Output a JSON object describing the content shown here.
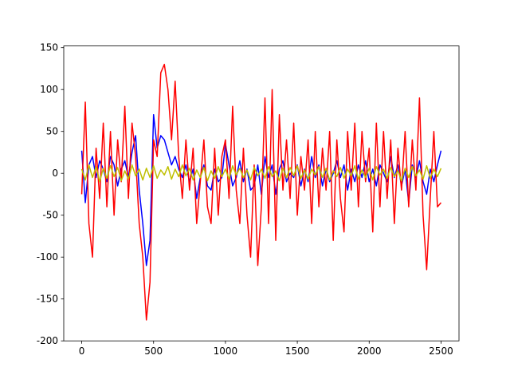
{
  "chart_data": {
    "type": "line",
    "x": [
      0,
      25,
      50,
      75,
      100,
      125,
      150,
      175,
      200,
      225,
      250,
      275,
      300,
      325,
      350,
      375,
      400,
      425,
      450,
      475,
      500,
      525,
      550,
      575,
      600,
      625,
      650,
      675,
      700,
      725,
      750,
      775,
      800,
      825,
      850,
      875,
      900,
      925,
      950,
      975,
      1000,
      1025,
      1050,
      1075,
      1100,
      1125,
      1150,
      1175,
      1200,
      1225,
      1250,
      1275,
      1300,
      1325,
      1350,
      1375,
      1400,
      1425,
      1450,
      1475,
      1500,
      1525,
      1550,
      1575,
      1600,
      1625,
      1650,
      1675,
      1700,
      1725,
      1750,
      1775,
      1800,
      1825,
      1850,
      1875,
      1900,
      1925,
      1950,
      1975,
      2000,
      2025,
      2050,
      2075,
      2100,
      2125,
      2150,
      2175,
      2200,
      2225,
      2250,
      2275,
      2300,
      2325,
      2350,
      2375,
      2400,
      2425,
      2450,
      2475,
      2500
    ],
    "series": [
      {
        "color": "#0000ff",
        "values": [
          27,
          -35,
          10,
          20,
          -5,
          15,
          5,
          -10,
          20,
          10,
          -15,
          5,
          15,
          -5,
          25,
          45,
          -20,
          -60,
          -110,
          -80,
          70,
          30,
          45,
          40,
          25,
          10,
          20,
          5,
          -5,
          10,
          -10,
          5,
          -30,
          -5,
          10,
          -15,
          -20,
          5,
          -10,
          -5,
          35,
          10,
          -15,
          -5,
          15,
          -10,
          5,
          -20,
          -15,
          10,
          -25,
          20,
          -5,
          10,
          -25,
          5,
          15,
          -10,
          0,
          -5,
          10,
          -15,
          5,
          -10,
          20,
          -5,
          10,
          -15,
          5,
          -10,
          0,
          15,
          -5,
          10,
          -20,
          5,
          -10,
          10,
          -5,
          15,
          -10,
          5,
          -15,
          10,
          0,
          -10,
          20,
          -5,
          10,
          -15,
          5,
          -35,
          10,
          -5,
          15,
          -10,
          -25,
          5,
          -10,
          10,
          27
        ]
      },
      {
        "color": "#ff0000",
        "values": [
          -25,
          85,
          -60,
          -100,
          30,
          -30,
          60,
          -40,
          50,
          -50,
          40,
          -10,
          80,
          -30,
          60,
          20,
          -60,
          -100,
          -175,
          -130,
          40,
          20,
          120,
          130,
          100,
          40,
          110,
          20,
          -30,
          40,
          -20,
          30,
          -60,
          -10,
          40,
          -40,
          -60,
          30,
          -50,
          20,
          40,
          -30,
          80,
          -20,
          -60,
          30,
          -50,
          -100,
          10,
          -110,
          -40,
          90,
          -60,
          100,
          -80,
          70,
          -20,
          40,
          -30,
          60,
          -50,
          20,
          -20,
          40,
          -60,
          50,
          -40,
          30,
          -20,
          50,
          -80,
          40,
          -30,
          -70,
          50,
          -20,
          60,
          -40,
          50,
          -10,
          30,
          -70,
          60,
          -40,
          50,
          -30,
          40,
          -60,
          30,
          -20,
          50,
          -40,
          40,
          -20,
          90,
          -50,
          -115,
          -30,
          50,
          -40,
          -35
        ]
      },
      {
        "color": "#bfbf00",
        "values": [
          5,
          -8,
          10,
          -5,
          8,
          -10,
          6,
          -6,
          9,
          -4,
          7,
          -9,
          3,
          -7,
          10,
          -3,
          5,
          -8,
          6,
          -5,
          9,
          -6,
          4,
          -2,
          8,
          -7,
          5,
          -4,
          10,
          -3,
          6,
          -8,
          4,
          -5,
          7,
          -9,
          3,
          -6,
          8,
          -4,
          5,
          -7,
          9,
          -2,
          6,
          -5,
          4,
          -8,
          7,
          -3,
          5,
          -6,
          8,
          -4,
          3,
          -9,
          6,
          -5,
          7,
          -3,
          9,
          -6,
          4,
          -7,
          5,
          -2,
          8,
          -5,
          6,
          -8,
          3,
          -4,
          7,
          -6,
          5,
          -3,
          9,
          -7,
          4,
          -5,
          6,
          -8,
          8,
          -2,
          5,
          -6,
          7,
          -4,
          3,
          -9,
          6,
          -5,
          8,
          -3,
          4,
          -7,
          9,
          -6,
          5,
          -4,
          6
        ]
      }
    ],
    "xlim": [
      -125,
      2625
    ],
    "ylim": [
      -200,
      152
    ],
    "xticks": [
      0,
      500,
      1000,
      1500,
      2000,
      2500
    ],
    "yticks": [
      -200,
      -150,
      -100,
      -50,
      0,
      50,
      100,
      150
    ]
  }
}
